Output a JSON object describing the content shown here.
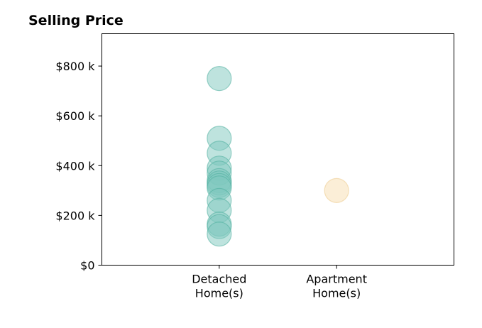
{
  "chart_data": {
    "type": "scatter",
    "title": "Selling Price",
    "xlabel": "",
    "ylabel": "",
    "categories": [
      "Detached\nHome(s)",
      "Apartment\nHome(s)"
    ],
    "ylim": [
      0,
      930000
    ],
    "y_ticks": [
      {
        "value": 0,
        "label": "$0"
      },
      {
        "value": 200000,
        "label": "$200 k"
      },
      {
        "value": 400000,
        "label": "$400 k"
      },
      {
        "value": 600000,
        "label": "$600 k"
      },
      {
        "value": 800000,
        "label": "$800 k"
      }
    ],
    "grid": false,
    "series": [
      {
        "category": "Detached\nHome(s)",
        "color": "#7ec8be",
        "stroke": "#4fae9f",
        "values": [
          750000,
          510000,
          450000,
          390000,
          370000,
          340000,
          330000,
          320000,
          310000,
          260000,
          220000,
          165000,
          155000,
          125000
        ]
      },
      {
        "category": "Apartment\nHome(s)",
        "color": "#f7deb0",
        "stroke": "#eccb8c",
        "values": [
          300000
        ]
      }
    ]
  }
}
